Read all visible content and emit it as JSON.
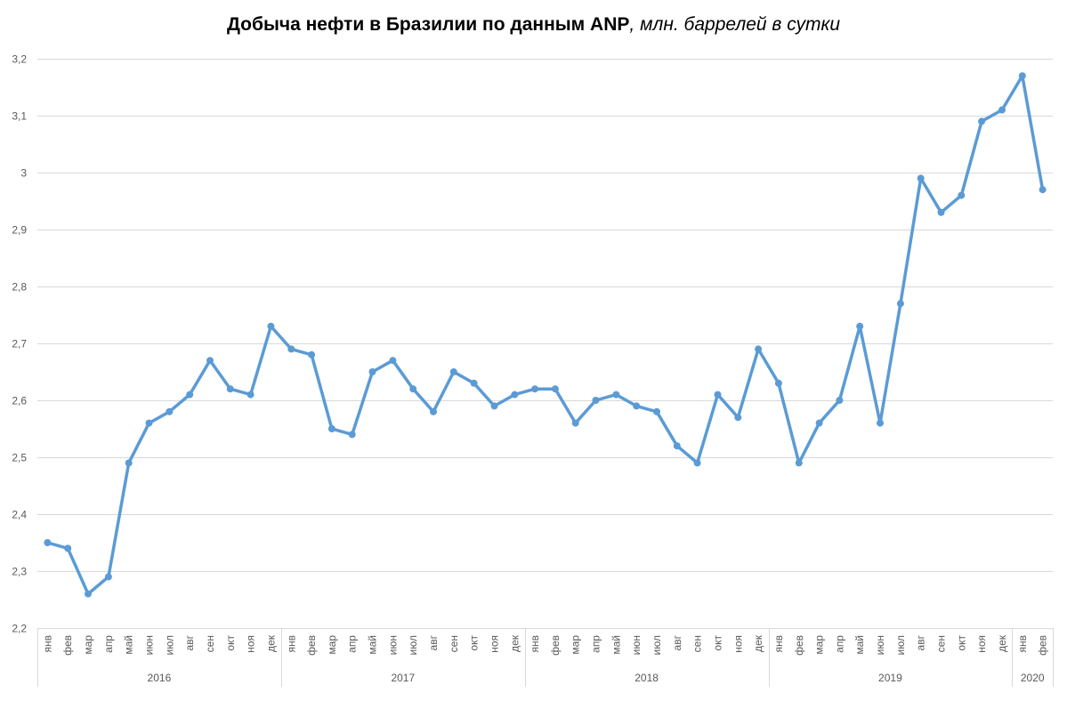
{
  "chart_data": {
    "type": "line",
    "title": "Добыча нефти в Бразилии по данным ANP",
    "subtitle": ", млн. баррелей в сутки",
    "xlabel": "",
    "ylabel": "",
    "ylim": [
      2.2,
      3.2
    ],
    "y_ticks": [
      "2,2",
      "2,3",
      "2,4",
      "2,5",
      "2,6",
      "2,7",
      "2,8",
      "2,9",
      "3",
      "3,1",
      "3,2"
    ],
    "grid": "horizontal",
    "legend": "none",
    "line_color": "#5b9bd5",
    "grid_color": "#d9d9d9",
    "groups": [
      {
        "year": "2016",
        "months": [
          "янв",
          "фев",
          "мар",
          "апр",
          "май",
          "июн",
          "июл",
          "авг",
          "сен",
          "окт",
          "ноя",
          "дек"
        ]
      },
      {
        "year": "2017",
        "months": [
          "янв",
          "фев",
          "мар",
          "апр",
          "май",
          "июн",
          "июл",
          "авг",
          "сен",
          "окт",
          "ноя",
          "дек"
        ]
      },
      {
        "year": "2018",
        "months": [
          "янв",
          "фев",
          "мар",
          "апр",
          "май",
          "июн",
          "июл",
          "авг",
          "сен",
          "окт",
          "ноя",
          "дек"
        ]
      },
      {
        "year": "2019",
        "months": [
          "янв",
          "фев",
          "мар",
          "апр",
          "май",
          "июн",
          "июл",
          "авг",
          "сен",
          "окт",
          "ноя",
          "дек"
        ]
      },
      {
        "year": "2020",
        "months": [
          "янв",
          "фев"
        ]
      }
    ],
    "values": [
      2.35,
      2.34,
      2.26,
      2.29,
      2.49,
      2.56,
      2.58,
      2.61,
      2.67,
      2.62,
      2.61,
      2.73,
      2.69,
      2.68,
      2.55,
      2.54,
      2.65,
      2.67,
      2.62,
      2.58,
      2.65,
      2.63,
      2.59,
      2.61,
      2.62,
      2.62,
      2.56,
      2.6,
      2.61,
      2.59,
      2.58,
      2.52,
      2.49,
      2.61,
      2.57,
      2.69,
      2.63,
      2.49,
      2.56,
      2.6,
      2.73,
      2.56,
      2.77,
      2.99,
      2.93,
      2.96,
      3.09,
      3.11,
      3.17,
      2.97
    ]
  }
}
